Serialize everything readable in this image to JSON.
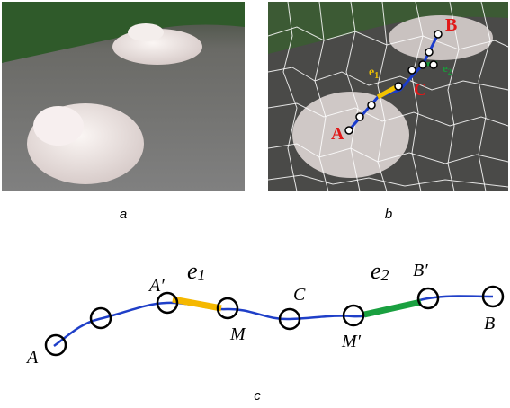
{
  "panels": {
    "a": {
      "caption": "a"
    },
    "b": {
      "caption": "b",
      "labels": {
        "A": "A",
        "B": "B",
        "C": "C",
        "e1": {
          "base": "e",
          "sub": "1"
        },
        "e2": {
          "base": "e",
          "sub": "2"
        }
      }
    },
    "c": {
      "caption": "c",
      "labels": {
        "A": "A",
        "A_prime": "A′",
        "e1": {
          "base": "e",
          "sub": "1"
        },
        "M": "M",
        "C": "C",
        "e2": {
          "base": "e",
          "sub": "2"
        },
        "M_prime": "M′",
        "B_prime": "B′",
        "B": "B"
      }
    }
  }
}
